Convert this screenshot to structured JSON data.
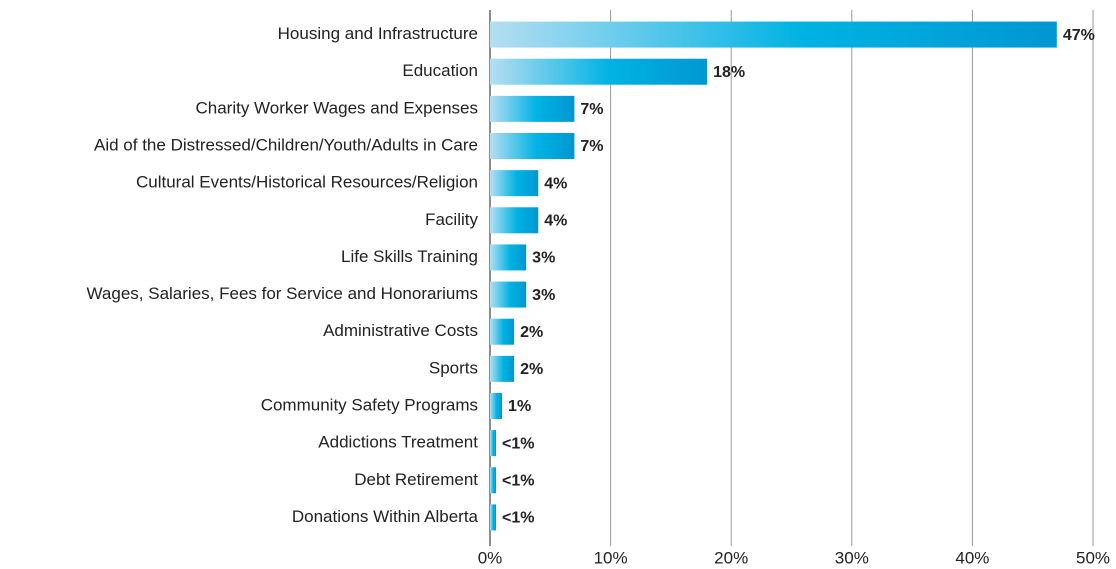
{
  "chart_data": {
    "type": "bar",
    "orientation": "horizontal",
    "categories": [
      "Housing and Infrastructure",
      "Education",
      "Charity Worker Wages and Expenses",
      "Aid of the Distressed/Children/Youth/Adults in Care",
      "Cultural Events/Historical Resources/Religion",
      "Facility",
      "Life Skills Training",
      "Wages, Salaries, Fees for Service and Honorariums",
      "Administrative Costs",
      "Sports",
      "Community Safety Programs",
      "Addictions Treatment",
      "Debt Retirement",
      "Donations Within Alberta"
    ],
    "values": [
      47,
      18,
      7,
      7,
      4,
      4,
      3,
      3,
      2,
      2,
      1,
      0.5,
      0.5,
      0.5
    ],
    "value_labels": [
      "47%",
      "18%",
      "7%",
      "7%",
      "4%",
      "4%",
      "3%",
      "3%",
      "2%",
      "2%",
      "1%",
      "<1%",
      "<1%",
      "<1%"
    ],
    "color": "#00a6dc",
    "xlim": [
      0,
      50
    ],
    "xticks": [
      {
        "value": 0,
        "label": "0%"
      },
      {
        "value": 10,
        "label": "10%"
      },
      {
        "value": 20,
        "label": "20%"
      },
      {
        "value": 30,
        "label": "30%"
      },
      {
        "value": 40,
        "label": "40%"
      },
      {
        "value": 50,
        "label": "50%"
      }
    ],
    "grid": true
  }
}
